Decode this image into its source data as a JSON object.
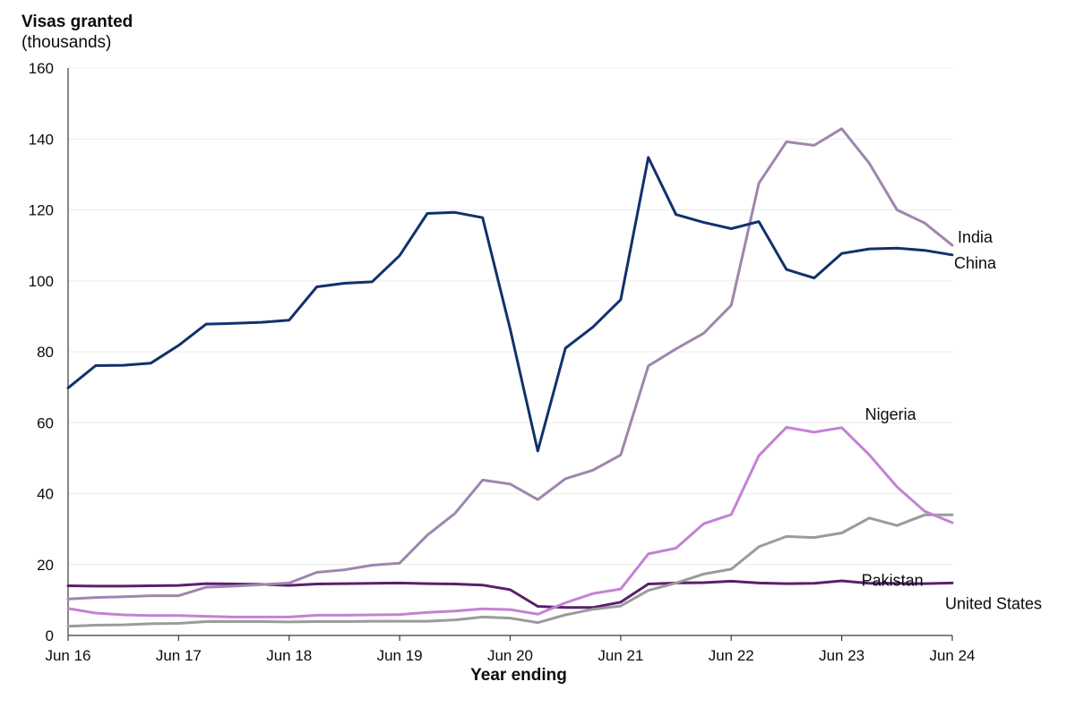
{
  "chart_data": {
    "type": "line",
    "ylabel": "Visas granted",
    "ylabel_unit": "(thousands)",
    "xlabel": "Year ending",
    "ylim": [
      0,
      160
    ],
    "yticks": [
      0,
      20,
      40,
      60,
      80,
      100,
      120,
      140,
      160
    ],
    "grid": "horizontal",
    "x": [
      "Jun 16",
      "Sep 16",
      "Dec 16",
      "Mar 17",
      "Jun 17",
      "Sep 17",
      "Dec 17",
      "Mar 18",
      "Jun 18",
      "Sep 18",
      "Dec 18",
      "Mar 19",
      "Jun 19",
      "Sep 19",
      "Dec 19",
      "Mar 20",
      "Jun 20",
      "Sep 20",
      "Dec 20",
      "Mar 21",
      "Jun 21",
      "Sep 21",
      "Dec 21",
      "Mar 22",
      "Jun 22",
      "Sep 22",
      "Dec 22",
      "Mar 23",
      "Jun 23",
      "Sep 23",
      "Dec 23",
      "Mar 24",
      "Jun 24"
    ],
    "xtick_labels": [
      "Jun 16",
      "Jun 17",
      "Jun 18",
      "Jun 19",
      "Jun 20",
      "Jun 21",
      "Jun 22",
      "Jun 23",
      "Jun 24"
    ],
    "series": [
      {
        "name": "China",
        "color": "#12316b",
        "values": [
          69.8,
          76.1,
          76.2,
          76.8,
          81.8,
          87.8,
          88.0,
          88.3,
          88.9,
          98.3,
          99.3,
          99.7,
          107.1,
          119.0,
          119.3,
          117.8,
          86.4,
          52.0,
          81.0,
          87.0,
          94.7,
          134.8,
          118.7,
          116.5,
          114.7,
          116.7,
          103.2,
          100.8,
          107.7,
          109.0,
          109.2,
          108.6,
          107.3
        ]
      },
      {
        "name": "India",
        "color": "#9e86ae",
        "values": [
          10.3,
          10.7,
          10.9,
          11.2,
          11.2,
          13.6,
          13.9,
          14.3,
          14.8,
          17.8,
          18.5,
          19.8,
          20.4,
          28.3,
          34.4,
          43.8,
          42.7,
          38.3,
          44.2,
          46.6,
          50.9,
          76.0,
          80.8,
          85.2,
          93.1,
          127.5,
          139.2,
          138.2,
          142.9,
          133.1,
          120.0,
          116.3,
          110.0
        ]
      },
      {
        "name": "Nigeria",
        "color": "#c482d4",
        "values": [
          7.6,
          6.3,
          5.8,
          5.6,
          5.6,
          5.4,
          5.2,
          5.2,
          5.2,
          5.7,
          5.7,
          5.8,
          5.9,
          6.5,
          6.9,
          7.5,
          7.3,
          6.0,
          9.2,
          11.8,
          13.1,
          23.0,
          24.6,
          31.5,
          34.1,
          50.7,
          58.7,
          57.3,
          58.6,
          50.9,
          41.9,
          35.0,
          31.8
        ]
      },
      {
        "name": "Pakistan",
        "color": "#9b9b9b",
        "values": [
          2.6,
          2.9,
          3.0,
          3.3,
          3.4,
          3.9,
          3.9,
          3.9,
          3.8,
          3.9,
          3.9,
          4.0,
          4.0,
          4.0,
          4.4,
          5.2,
          4.9,
          3.6,
          5.8,
          7.4,
          8.3,
          12.7,
          14.8,
          17.3,
          18.7,
          25.0,
          27.9,
          27.6,
          28.9,
          33.1,
          31.0,
          34.0,
          34.0
        ]
      },
      {
        "name": "United States",
        "color": "#5b1f6e",
        "values": [
          14.0,
          13.9,
          13.9,
          14.0,
          14.1,
          14.6,
          14.5,
          14.4,
          14.1,
          14.5,
          14.6,
          14.7,
          14.8,
          14.6,
          14.5,
          14.2,
          12.9,
          8.2,
          7.9,
          7.9,
          9.4,
          14.5,
          14.8,
          14.9,
          15.3,
          14.8,
          14.6,
          14.7,
          15.4,
          14.7,
          14.7,
          14.6,
          14.8
        ]
      }
    ]
  }
}
